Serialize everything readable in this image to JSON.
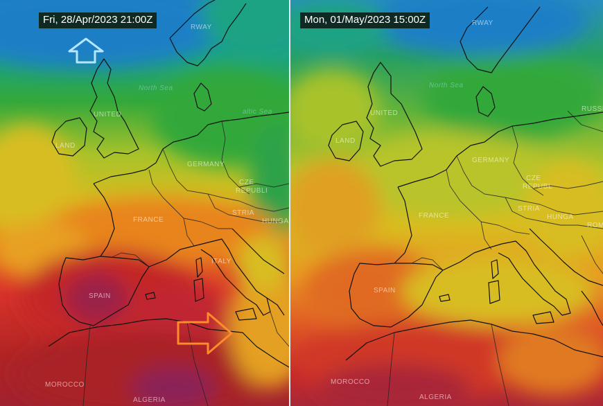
{
  "panels": [
    {
      "timestamp": "Fri, 28/Apr/2023 21:00Z",
      "labels": {
        "norway": "RWAY",
        "north_sea": "North Sea",
        "baltic_sea": "altic Sea",
        "uk": "UNITED",
        "ireland": "LAND",
        "germany": "GERMANY",
        "czech": "CZE",
        "czech2": "REPUBLI",
        "austria": "STRIA",
        "hungary": "HUNGA",
        "france": "FRANCE",
        "spain": "SPAIN",
        "italy": "ITALY",
        "morocco": "MOROCCO",
        "algeria": "ALGERIA"
      }
    },
    {
      "timestamp": "Mon, 01/May/2023 15:00Z",
      "labels": {
        "norway": "RWAY",
        "north_sea": "North Sea",
        "russia": "RUSSI",
        "uk": "UNITED",
        "ireland": "LAND",
        "germany": "GERMANY",
        "czech": "CZE",
        "czech2": "REPUBL",
        "austria": "STRIA",
        "hungary": "HUNGA",
        "romania": "ROM",
        "france": "FRANCE",
        "spain": "SPAIN",
        "morocco": "MOROCCO",
        "algeria": "ALGERIA"
      }
    }
  ],
  "annotations": {
    "up_arrow_color": "#7ec8f0",
    "right_arrow_color": "#ff8c2a"
  },
  "palette": {
    "blue": "#1f7fc6",
    "teal": "#1aa383",
    "green": "#33a83a",
    "yellowgreen": "#a8c22a",
    "yellow": "#d8bd20",
    "orange": "#e8841e",
    "red": "#d8332a",
    "darkred": "#a82020",
    "purple": "#8a2058"
  }
}
